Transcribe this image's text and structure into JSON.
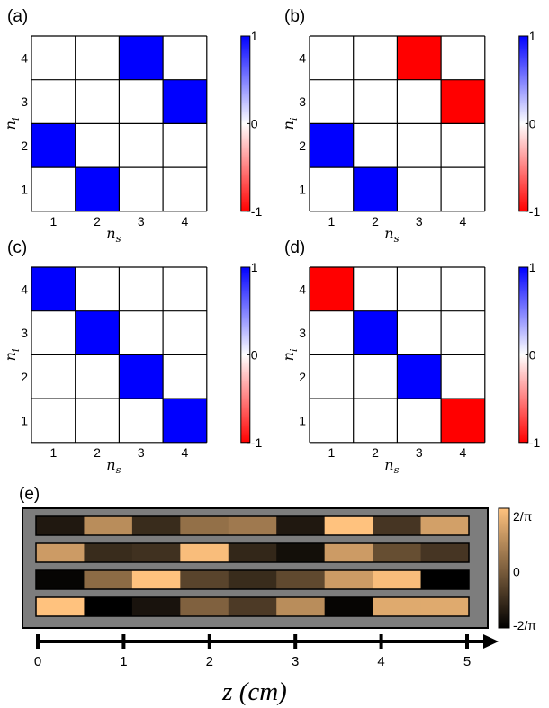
{
  "chart_data": [
    {
      "type": "heatmap",
      "panel_label": "(a)",
      "xlabel": "n_s",
      "ylabel": "n_i",
      "x_ticks": [
        "1",
        "2",
        "3",
        "4"
      ],
      "y_ticks": [
        "1",
        "2",
        "3",
        "4"
      ],
      "matrix": [
        [
          0,
          0,
          1,
          0
        ],
        [
          0,
          0,
          0,
          1
        ],
        [
          1,
          0,
          0,
          0
        ],
        [
          0,
          1,
          0,
          0
        ]
      ],
      "colorbar": {
        "min": -1,
        "max": 1,
        "ticks": [
          "-1",
          "0",
          "1"
        ],
        "min_color": "#ff0000",
        "max_color": "#0000ff"
      }
    },
    {
      "type": "heatmap",
      "panel_label": "(b)",
      "xlabel": "n_s",
      "ylabel": "n_i",
      "x_ticks": [
        "1",
        "2",
        "3",
        "4"
      ],
      "y_ticks": [
        "1",
        "2",
        "3",
        "4"
      ],
      "matrix": [
        [
          0,
          0,
          -1,
          0
        ],
        [
          0,
          0,
          0,
          -1
        ],
        [
          1,
          0,
          0,
          0
        ],
        [
          0,
          1,
          0,
          0
        ]
      ],
      "colorbar": {
        "min": -1,
        "max": 1,
        "ticks": [
          "-1",
          "0",
          "1"
        ],
        "min_color": "#ff0000",
        "max_color": "#0000ff"
      }
    },
    {
      "type": "heatmap",
      "panel_label": "(c)",
      "xlabel": "n_s",
      "ylabel": "n_i",
      "x_ticks": [
        "1",
        "2",
        "3",
        "4"
      ],
      "y_ticks": [
        "1",
        "2",
        "3",
        "4"
      ],
      "matrix": [
        [
          1,
          0,
          0,
          0
        ],
        [
          0,
          1,
          0,
          0
        ],
        [
          0,
          0,
          1,
          0
        ],
        [
          0,
          0,
          0,
          1
        ]
      ],
      "colorbar": {
        "min": -1,
        "max": 1,
        "ticks": [
          "-1",
          "0",
          "1"
        ],
        "min_color": "#ff0000",
        "max_color": "#0000ff"
      }
    },
    {
      "type": "heatmap",
      "panel_label": "(d)",
      "xlabel": "n_s",
      "ylabel": "n_i",
      "x_ticks": [
        "1",
        "2",
        "3",
        "4"
      ],
      "y_ticks": [
        "1",
        "2",
        "3",
        "4"
      ],
      "matrix": [
        [
          -1,
          0,
          0,
          0
        ],
        [
          0,
          1,
          0,
          0
        ],
        [
          0,
          0,
          1,
          0
        ],
        [
          0,
          0,
          0,
          -1
        ]
      ],
      "colorbar": {
        "min": -1,
        "max": 1,
        "ticks": [
          "-1",
          "0",
          "1"
        ],
        "min_color": "#ff0000",
        "max_color": "#0000ff"
      }
    },
    {
      "type": "heatmap",
      "panel_label": "(e)",
      "xlabel": "z (cm)",
      "x_ticks": [
        "0",
        "1",
        "2",
        "3",
        "4",
        "5"
      ],
      "x_range": [
        0,
        5
      ],
      "segment_length_cm": 0.55,
      "rows": [
        [
          -0.75,
          0.45,
          -0.55,
          0.15,
          0.25,
          -0.75,
          1.0,
          -0.45,
          0.65
        ],
        [
          0.6,
          -0.55,
          -0.5,
          0.95,
          -0.6,
          -0.85,
          0.6,
          -0.2,
          -0.45
        ],
        [
          -0.95,
          0.1,
          1.0,
          -0.3,
          -0.55,
          -0.25,
          0.6,
          0.95,
          -1.0
        ],
        [
          1.0,
          -1.0,
          -0.8,
          0.0,
          -0.4,
          0.45,
          -0.95,
          0.75,
          0.75
        ]
      ],
      "colorbar": {
        "min": -1,
        "max": 1,
        "ticks": [
          "-2/π",
          "0",
          "2/π"
        ],
        "min_color": "#000000",
        "max_color": "#ffc27e"
      },
      "background_color": "#7d7d7d"
    }
  ]
}
